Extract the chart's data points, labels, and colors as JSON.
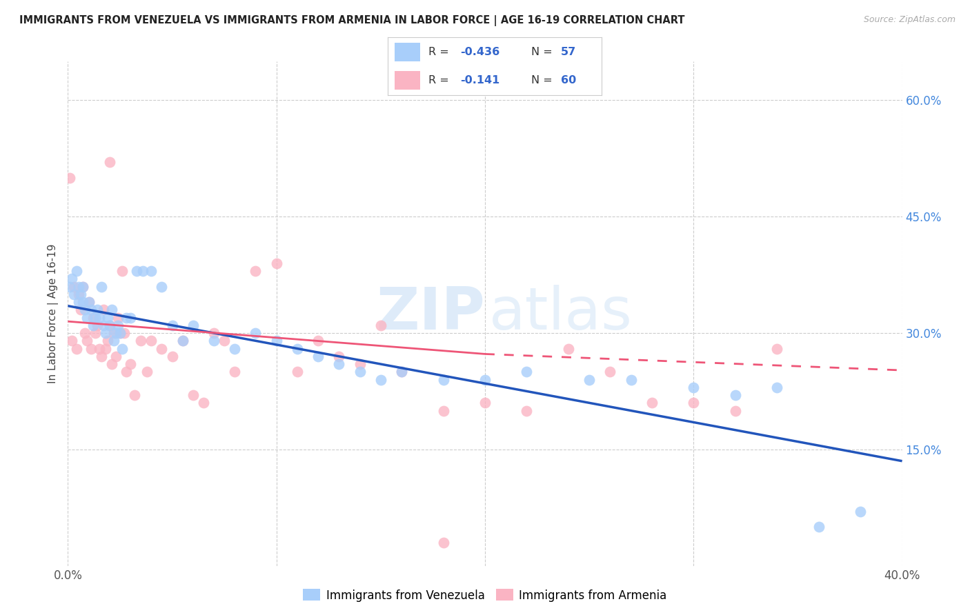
{
  "title": "IMMIGRANTS FROM VENEZUELA VS IMMIGRANTS FROM ARMENIA IN LABOR FORCE | AGE 16-19 CORRELATION CHART",
  "source": "Source: ZipAtlas.com",
  "ylabel": "In Labor Force | Age 16-19",
  "y_tick_vals": [
    0.15,
    0.3,
    0.45,
    0.6
  ],
  "y_tick_labels": [
    "15.0%",
    "30.0%",
    "45.0%",
    "60.0%"
  ],
  "xlim": [
    0.0,
    0.4
  ],
  "ylim": [
    0.0,
    0.65
  ],
  "legend_R_venezuela": "-0.436",
  "legend_N_venezuela": "57",
  "legend_R_armenia": "-0.141",
  "legend_N_armenia": "60",
  "color_venezuela": "#A8CEFA",
  "color_armenia": "#FAB4C3",
  "color_trend_venezuela": "#2255BB",
  "color_trend_armenia": "#EE5577",
  "watermark_zip": "ZIP",
  "watermark_atlas": "atlas",
  "venezuela_x": [
    0.001,
    0.002,
    0.003,
    0.004,
    0.005,
    0.005,
    0.006,
    0.007,
    0.007,
    0.008,
    0.009,
    0.01,
    0.011,
    0.012,
    0.013,
    0.014,
    0.015,
    0.016,
    0.017,
    0.018,
    0.019,
    0.02,
    0.021,
    0.022,
    0.023,
    0.024,
    0.025,
    0.026,
    0.028,
    0.03,
    0.033,
    0.036,
    0.04,
    0.045,
    0.05,
    0.055,
    0.06,
    0.07,
    0.08,
    0.09,
    0.1,
    0.11,
    0.12,
    0.13,
    0.14,
    0.15,
    0.16,
    0.18,
    0.2,
    0.22,
    0.25,
    0.27,
    0.3,
    0.32,
    0.34,
    0.36,
    0.38
  ],
  "venezuela_y": [
    0.36,
    0.37,
    0.35,
    0.38,
    0.36,
    0.34,
    0.35,
    0.34,
    0.36,
    0.33,
    0.32,
    0.34,
    0.33,
    0.31,
    0.32,
    0.33,
    0.32,
    0.36,
    0.31,
    0.3,
    0.32,
    0.31,
    0.33,
    0.29,
    0.3,
    0.31,
    0.3,
    0.28,
    0.32,
    0.32,
    0.38,
    0.38,
    0.38,
    0.36,
    0.31,
    0.29,
    0.31,
    0.29,
    0.28,
    0.3,
    0.29,
    0.28,
    0.27,
    0.26,
    0.25,
    0.24,
    0.25,
    0.24,
    0.24,
    0.25,
    0.24,
    0.24,
    0.23,
    0.22,
    0.23,
    0.05,
    0.07
  ],
  "armenia_x": [
    0.001,
    0.002,
    0.003,
    0.004,
    0.005,
    0.006,
    0.007,
    0.008,
    0.009,
    0.01,
    0.011,
    0.012,
    0.013,
    0.014,
    0.015,
    0.016,
    0.017,
    0.018,
    0.019,
    0.02,
    0.021,
    0.022,
    0.023,
    0.024,
    0.025,
    0.026,
    0.027,
    0.028,
    0.03,
    0.032,
    0.035,
    0.038,
    0.04,
    0.045,
    0.05,
    0.055,
    0.06,
    0.065,
    0.07,
    0.075,
    0.08,
    0.09,
    0.1,
    0.11,
    0.12,
    0.13,
    0.14,
    0.15,
    0.16,
    0.18,
    0.2,
    0.22,
    0.24,
    0.26,
    0.28,
    0.3,
    0.32,
    0.34,
    0.18,
    0.02
  ],
  "armenia_y": [
    0.5,
    0.29,
    0.36,
    0.28,
    0.35,
    0.33,
    0.36,
    0.3,
    0.29,
    0.34,
    0.28,
    0.32,
    0.3,
    0.31,
    0.28,
    0.27,
    0.33,
    0.28,
    0.29,
    0.31,
    0.26,
    0.3,
    0.27,
    0.32,
    0.3,
    0.38,
    0.3,
    0.25,
    0.26,
    0.22,
    0.29,
    0.25,
    0.29,
    0.28,
    0.27,
    0.29,
    0.22,
    0.21,
    0.3,
    0.29,
    0.25,
    0.38,
    0.39,
    0.25,
    0.29,
    0.27,
    0.26,
    0.31,
    0.25,
    0.2,
    0.21,
    0.2,
    0.28,
    0.25,
    0.21,
    0.21,
    0.2,
    0.28,
    0.03,
    0.52
  ],
  "trend_ven_x0": 0.0,
  "trend_ven_y0": 0.335,
  "trend_ven_x1": 0.4,
  "trend_ven_y1": 0.135,
  "trend_arm_solid_x0": 0.0,
  "trend_arm_solid_y0": 0.315,
  "trend_arm_solid_x1": 0.2,
  "trend_arm_solid_y1": 0.273,
  "trend_arm_dash_x0": 0.2,
  "trend_arm_dash_y0": 0.273,
  "trend_arm_dash_x1": 0.4,
  "trend_arm_dash_y1": 0.252
}
